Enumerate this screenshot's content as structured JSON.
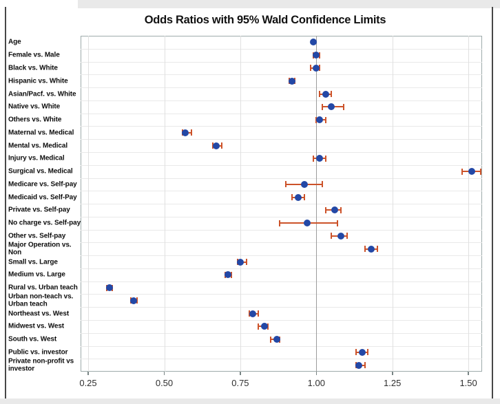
{
  "chart_data": {
    "type": "scatter",
    "subtype": "forest-plot-odds-ratios",
    "title": "Odds Ratios with 95% Wald Confidence Limits",
    "xlabel": "",
    "ylabel": "",
    "xlim": [
      0.225,
      1.545
    ],
    "x_ticks": [
      0.25,
      0.5,
      0.75,
      1.0,
      1.25,
      1.5
    ],
    "x_tick_labels": [
      "0.25",
      "0.50",
      "0.75",
      "1.00",
      "1.25",
      "1.50"
    ],
    "reference_line_x": 1.0,
    "grid": true,
    "legend_position": "none",
    "rows": [
      {
        "label": "Age",
        "or": 0.99,
        "lo": null,
        "hi": null
      },
      {
        "label": "Female vs. Male",
        "or": 1.0,
        "lo": 0.99,
        "hi": 1.01
      },
      {
        "label": "Black vs. White",
        "or": 1.0,
        "lo": 0.98,
        "hi": 1.01
      },
      {
        "label": "Hispanic vs. White",
        "or": 0.92,
        "lo": 0.91,
        "hi": 0.93
      },
      {
        "label": "Asian/Pacf. vs. White",
        "or": 1.03,
        "lo": 1.01,
        "hi": 1.05
      },
      {
        "label": "Native vs. White",
        "or": 1.05,
        "lo": 1.02,
        "hi": 1.09
      },
      {
        "label": "Others vs. White",
        "or": 1.01,
        "lo": 1.0,
        "hi": 1.03
      },
      {
        "label": "Maternal vs. Medical",
        "or": 0.57,
        "lo": 0.56,
        "hi": 0.59
      },
      {
        "label": "Mental vs. Medical",
        "or": 0.67,
        "lo": 0.66,
        "hi": 0.69
      },
      {
        "label": "Injury vs. Medical",
        "or": 1.01,
        "lo": 0.99,
        "hi": 1.03
      },
      {
        "label": "Surgical vs. Medical",
        "or": 1.51,
        "lo": 1.48,
        "hi": 1.54
      },
      {
        "label": "Medicare vs. Self-pay",
        "or": 0.96,
        "lo": 0.9,
        "hi": 1.02
      },
      {
        "label": "Medicaid vs. Self-Pay",
        "or": 0.94,
        "lo": 0.92,
        "hi": 0.96
      },
      {
        "label": "Private vs. Self-pay",
        "or": 1.06,
        "lo": 1.03,
        "hi": 1.08
      },
      {
        "label": "No charge vs. Self-pay",
        "or": 0.97,
        "lo": 0.88,
        "hi": 1.07
      },
      {
        "label": "Other vs. Self-pay",
        "or": 1.08,
        "lo": 1.05,
        "hi": 1.1
      },
      {
        "label": "Major Operation vs.\nNon",
        "or": 1.18,
        "lo": 1.16,
        "hi": 1.2
      },
      {
        "label": "Small vs. Large",
        "or": 0.75,
        "lo": 0.74,
        "hi": 0.77
      },
      {
        "label": "Medium vs. Large",
        "or": 0.71,
        "lo": 0.7,
        "hi": 0.72
      },
      {
        "label": "Rural vs. Urban teach",
        "or": 0.32,
        "lo": 0.31,
        "hi": 0.33
      },
      {
        "label": "Urban non-teach vs.\nUrban teach",
        "or": 0.4,
        "lo": 0.39,
        "hi": 0.41
      },
      {
        "label": "Northeast vs. West",
        "or": 0.79,
        "lo": 0.78,
        "hi": 0.81
      },
      {
        "label": "Midwest vs. West",
        "or": 0.83,
        "lo": 0.81,
        "hi": 0.84
      },
      {
        "label": "South vs. West",
        "or": 0.87,
        "lo": 0.85,
        "hi": 0.88
      },
      {
        "label": "Public vs. investor",
        "or": 1.15,
        "lo": 1.13,
        "hi": 1.17
      },
      {
        "label": "Private non-profit vs\ninvestor",
        "or": 1.14,
        "lo": 1.13,
        "hi": 1.16
      }
    ],
    "colors": {
      "marker": "#2348a6",
      "error_bar": "#cc5229",
      "reference_line": "#9b9b9b",
      "gridline_vertical": "#e0e0e0",
      "gridline_horizontal": "#e9e9e9",
      "plot_frame": "#9daaaa",
      "page_band": "#e9e9e9",
      "page_border": "#474747"
    }
  }
}
